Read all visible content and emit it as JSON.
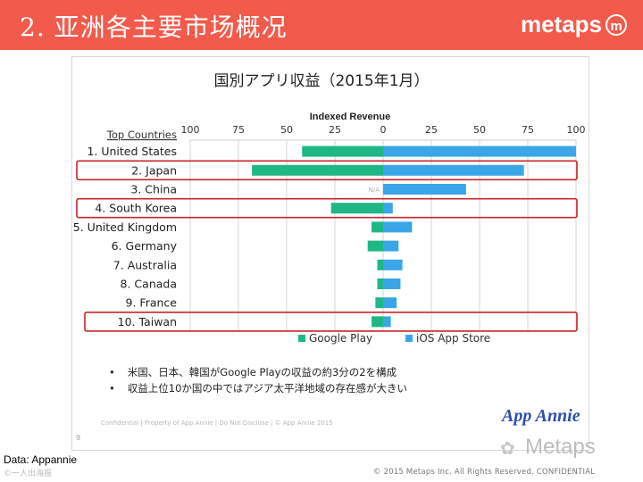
{
  "header": {
    "title": "2. 亚洲各主要市场概况",
    "logo_text": "metaps",
    "logo_mark": "m",
    "bg_color": "#f25a4b"
  },
  "chart_data": {
    "type": "bar",
    "orientation": "horizontal-diverging",
    "title": "国別アプリ収益（2015年1月）",
    "axis_title": "Indexed Revenue",
    "row_header": "Top Countries",
    "tick_labels": [
      "100",
      "75",
      "50",
      "25",
      "0",
      "25",
      "50",
      "75",
      "100"
    ],
    "categories": [
      "1. United States",
      "2. Japan",
      "3. China",
      "4. South Korea",
      "5. United Kingdom",
      "6. Germany",
      "7. Australia",
      "8. Canada",
      "9. France",
      "10. Taiwan"
    ],
    "highlighted": [
      "2. Japan",
      "4. South Korea",
      "10. Taiwan"
    ],
    "na_label": "N/A",
    "series": [
      {
        "name": "Google Play",
        "color": "#1fb784",
        "side": "left",
        "values": [
          42,
          68,
          null,
          27,
          6,
          8,
          3,
          3,
          4,
          6
        ]
      },
      {
        "name": "iOS App Store",
        "color": "#3aa6e8",
        "side": "right",
        "values": [
          100,
          73,
          43,
          5,
          15,
          8,
          10,
          9,
          7,
          4
        ]
      }
    ],
    "xlim": [
      0,
      100
    ]
  },
  "notes": [
    "米国、日本、韓国がGoogle Playの収益の約3分の2を構成",
    "収益上位10か国の中ではアジア太平洋地域の存在感が大きい"
  ],
  "footer": {
    "confidential": "Confidential  |  Property of App Annie  |  Do Not Disclose  |  © App Annie 2015",
    "page_number": "9",
    "app_annie": "App Annie",
    "watermark": "Metaps",
    "source": "Data: Appannie",
    "wechat": "©一人出海报",
    "copyright": "© 2015 Metaps Inc. All Rights Reserved. CONFIDENTIAL"
  }
}
